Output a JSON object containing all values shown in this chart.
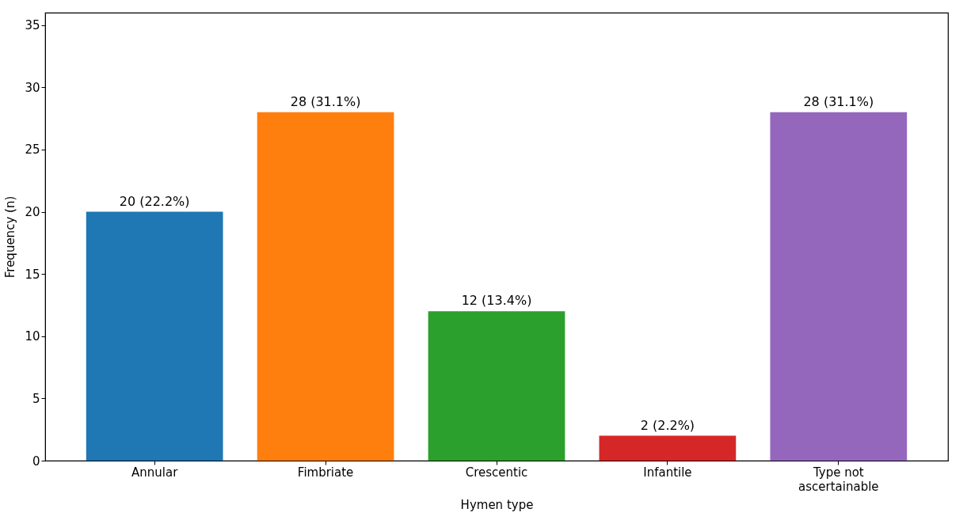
{
  "chart_data": {
    "type": "bar",
    "xlabel": "Hymen type",
    "ylabel": "Frequency (n)",
    "categories": [
      "Annular",
      "Fimbriate",
      "Crescentic",
      "Infantile",
      "Type not\nascertainable"
    ],
    "values": [
      20,
      28,
      12,
      2,
      28
    ],
    "colors": [
      "#1f77b4",
      "#ff7f0e",
      "#2ca02c",
      "#d62728",
      "#9467bd"
    ],
    "value_labels": [
      "20 (22.2%)",
      "28 (31.1%)",
      "12 (13.4%)",
      "2 (2.2%)",
      "28 (31.1%)"
    ],
    "ylim": [
      0,
      36
    ],
    "yticks": [
      0,
      5,
      10,
      15,
      20,
      25,
      30,
      35
    ],
    "grid": false,
    "legend": false
  }
}
